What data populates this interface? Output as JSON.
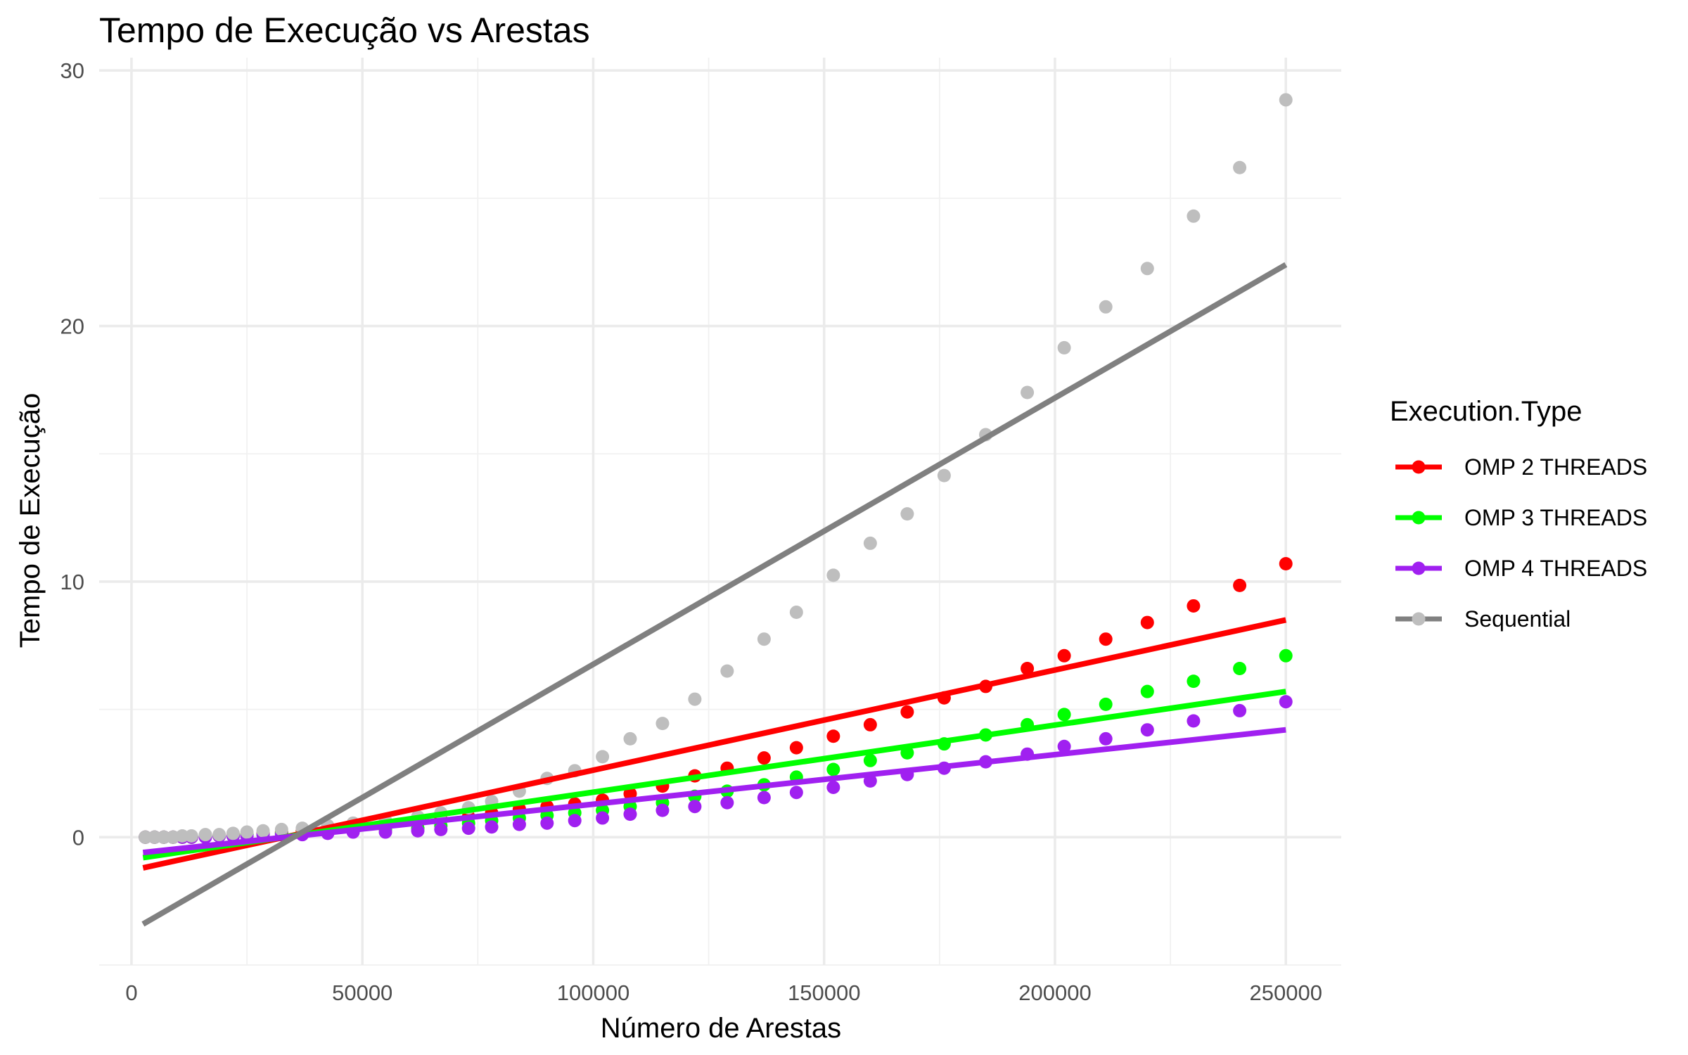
{
  "chart_data": {
    "type": "scatter",
    "title": "Tempo de Execução vs Arestas",
    "xlabel": "Número de Arestas",
    "ylabel": "Tempo de Execução",
    "xlim": [
      -7000,
      262000
    ],
    "ylim": [
      -5,
      30.5
    ],
    "x_ticks": [
      0,
      50000,
      100000,
      150000,
      200000,
      250000
    ],
    "x_tick_labels": [
      "0",
      "50000",
      "100000",
      "150000",
      "200000",
      "250000"
    ],
    "y_ticks": [
      0,
      10,
      20,
      30
    ],
    "y_tick_labels": [
      "0",
      "10",
      "20",
      "30"
    ],
    "grid": true,
    "legend": {
      "title": "Execution.Type",
      "position": "right"
    },
    "series": [
      {
        "name": "OMP 2 THREADS",
        "color": "#ff0000",
        "x": [
          3000,
          5000,
          7000,
          9000,
          11000,
          13000,
          16000,
          19000,
          22000,
          25000,
          28500,
          32500,
          37000,
          42500,
          48000,
          55000,
          62000,
          67000,
          73000,
          78000,
          84000,
          90000,
          96000,
          102000,
          108000,
          115000,
          122000,
          129000,
          137000,
          144000,
          152000,
          160000,
          168000,
          176000,
          185000,
          194000,
          202000,
          211000,
          220000,
          230000,
          240000,
          250000
        ],
        "y": [
          0.0,
          0.0,
          0.0,
          0.0,
          0.0,
          0.0,
          0.05,
          0.05,
          0.1,
          0.1,
          0.15,
          0.2,
          0.25,
          0.3,
          0.35,
          0.45,
          0.55,
          0.7,
          0.8,
          0.95,
          1.1,
          1.2,
          1.3,
          1.45,
          1.7,
          2.0,
          2.4,
          2.7,
          3.1,
          3.5,
          3.95,
          4.4,
          4.9,
          5.45,
          5.9,
          6.6,
          7.1,
          7.75,
          8.4,
          9.05,
          9.85,
          10.7
        ],
        "trend": [
          [
            2500,
            -1.2
          ],
          [
            250000,
            8.5
          ]
        ]
      },
      {
        "name": "OMP 3 THREADS",
        "color": "#00ff00",
        "x": [
          3000,
          5000,
          7000,
          9000,
          11000,
          13000,
          16000,
          19000,
          22000,
          25000,
          28500,
          32500,
          37000,
          42500,
          48000,
          55000,
          62000,
          67000,
          73000,
          78000,
          84000,
          90000,
          96000,
          102000,
          108000,
          115000,
          122000,
          129000,
          137000,
          144000,
          152000,
          160000,
          168000,
          176000,
          185000,
          194000,
          202000,
          211000,
          220000,
          230000,
          240000,
          250000
        ],
        "y": [
          0.0,
          0.0,
          0.0,
          0.0,
          0.0,
          0.0,
          0.05,
          0.05,
          0.05,
          0.1,
          0.1,
          0.15,
          0.15,
          0.2,
          0.25,
          0.3,
          0.35,
          0.45,
          0.55,
          0.65,
          0.75,
          0.85,
          0.95,
          1.05,
          1.2,
          1.35,
          1.6,
          1.8,
          2.05,
          2.35,
          2.65,
          3.0,
          3.3,
          3.65,
          4.0,
          4.4,
          4.8,
          5.2,
          5.7,
          6.1,
          6.6,
          7.1
        ],
        "trend": [
          [
            2500,
            -0.8
          ],
          [
            250000,
            5.7
          ]
        ]
      },
      {
        "name": "OMP 4 THREADS",
        "color": "#a020f0",
        "x": [
          3000,
          5000,
          7000,
          9000,
          11000,
          13000,
          16000,
          19000,
          22000,
          25000,
          28500,
          32500,
          37000,
          42500,
          48000,
          55000,
          62000,
          67000,
          73000,
          78000,
          84000,
          90000,
          96000,
          102000,
          108000,
          115000,
          122000,
          129000,
          137000,
          144000,
          152000,
          160000,
          168000,
          176000,
          185000,
          194000,
          202000,
          211000,
          220000,
          230000,
          240000,
          250000
        ],
        "y": [
          0.0,
          0.0,
          0.0,
          0.0,
          0.0,
          0.0,
          0.0,
          0.05,
          0.05,
          0.05,
          0.1,
          0.1,
          0.1,
          0.15,
          0.2,
          0.2,
          0.25,
          0.3,
          0.35,
          0.4,
          0.5,
          0.55,
          0.65,
          0.75,
          0.9,
          1.05,
          1.2,
          1.35,
          1.55,
          1.75,
          1.95,
          2.2,
          2.45,
          2.7,
          2.95,
          3.25,
          3.55,
          3.85,
          4.2,
          4.55,
          4.95,
          5.3
        ],
        "trend": [
          [
            2500,
            -0.6
          ],
          [
            250000,
            4.2
          ]
        ]
      },
      {
        "name": "Sequential",
        "color": "#bebebe",
        "trend_color": "#808080",
        "x": [
          3000,
          5000,
          7000,
          9000,
          11000,
          13000,
          16000,
          19000,
          22000,
          25000,
          28500,
          32500,
          37000,
          42500,
          48000,
          55000,
          62000,
          67000,
          73000,
          78000,
          84000,
          90000,
          96000,
          102000,
          108000,
          115000,
          122000,
          129000,
          137000,
          144000,
          152000,
          160000,
          168000,
          176000,
          185000,
          194000,
          202000,
          211000,
          220000,
          230000,
          240000,
          250000
        ],
        "y": [
          0.0,
          0.0,
          0.0,
          0.0,
          0.05,
          0.05,
          0.1,
          0.1,
          0.15,
          0.2,
          0.25,
          0.3,
          0.35,
          0.45,
          0.55,
          0.65,
          0.8,
          0.95,
          1.15,
          1.4,
          1.8,
          2.3,
          2.6,
          3.15,
          3.85,
          4.45,
          5.4,
          6.5,
          7.75,
          8.8,
          10.25,
          11.5,
          12.65,
          14.15,
          15.75,
          17.4,
          19.15,
          20.75,
          22.25,
          24.3,
          26.2,
          28.85
        ],
        "trend": [
          [
            2500,
            -3.4
          ],
          [
            250000,
            22.4
          ]
        ]
      }
    ]
  }
}
